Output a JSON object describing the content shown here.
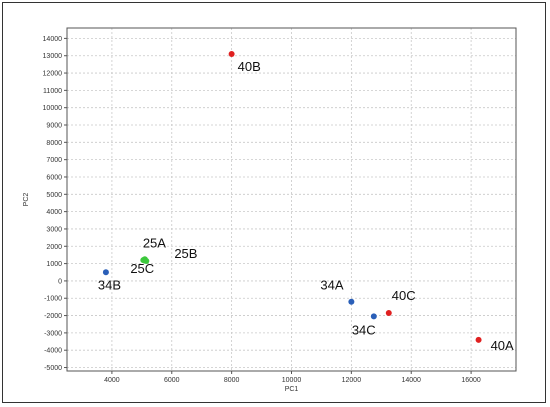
{
  "chart_data": {
    "type": "scatter",
    "title": "",
    "xlabel": "PC1",
    "ylabel": "PC2",
    "xlim": [
      2500,
      17500
    ],
    "ylim": [
      -5200,
      14600
    ],
    "x_ticks": [
      4000,
      6000,
      8000,
      10000,
      12000,
      14000,
      16000
    ],
    "y_ticks": [
      -5000,
      -4000,
      -3000,
      -2000,
      -1000,
      0,
      1000,
      2000,
      3000,
      4000,
      5000,
      6000,
      7000,
      8000,
      9000,
      10000,
      11000,
      12000,
      13000,
      14000
    ],
    "grid": true,
    "colors": {
      "red": "#e02020",
      "blue": "#2a5fb8",
      "green": "#3cc83c"
    },
    "points": [
      {
        "label": "40B",
        "x": 8000,
        "y": 13100,
        "color": "red"
      },
      {
        "label": "25A",
        "x": 5100,
        "y": 1250,
        "color": "green"
      },
      {
        "label": "25B",
        "x": 5150,
        "y": 1150,
        "color": "green"
      },
      {
        "label": "25C",
        "x": 5050,
        "y": 1200,
        "color": "green"
      },
      {
        "label": "34B",
        "x": 3800,
        "y": 500,
        "color": "blue"
      },
      {
        "label": "34A",
        "x": 12000,
        "y": -1200,
        "color": "blue"
      },
      {
        "label": "34C",
        "x": 12750,
        "y": -2050,
        "color": "blue"
      },
      {
        "label": "40C",
        "x": 13250,
        "y": -1850,
        "color": "red"
      },
      {
        "label": "40A",
        "x": 16250,
        "y": -3400,
        "color": "red"
      }
    ]
  }
}
